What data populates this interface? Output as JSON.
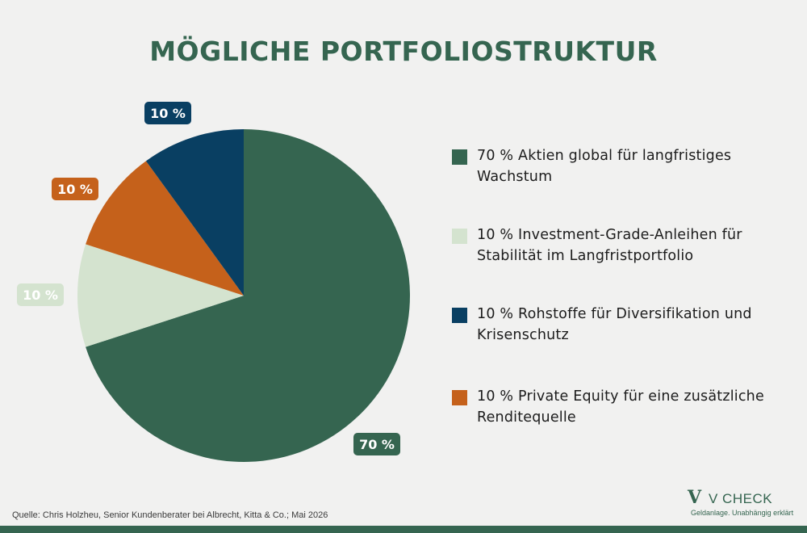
{
  "title": "MÖGLICHE PORTFOLIOSTRUKTUR",
  "chart_data": {
    "type": "pie",
    "unit": "%",
    "slices": [
      {
        "label": "70 % Aktien global für langfristiges Wachstum",
        "value": 70,
        "display": "70 %",
        "color": "#356550",
        "label_text_color": "#ffffff"
      },
      {
        "label": "10 % Investment-Grade-Anleihen für Stabilität im Langfristportfolio",
        "value": 10,
        "display": "10 %",
        "color": "#d4e3cf",
        "label_text_color": "#ffffff"
      },
      {
        "label": "10 % Private Equity für eine zusätzliche Renditequelle",
        "value": 10,
        "display": "10 %",
        "color": "#c5611b",
        "label_text_color": "#ffffff"
      },
      {
        "label": "10 % Rohstoffe für Diversifikation und Krisenschutz",
        "value": 10,
        "display": "10 %",
        "color": "#093f62",
        "label_text_color": "#ffffff"
      }
    ]
  },
  "legend": {
    "items": [
      {
        "line1": "70 % Aktien global für langfristiges",
        "line2": "Wachstum",
        "color": "#356550"
      },
      {
        "line1": "10 % Investment-Grade-Anleihen für",
        "line2": "Stabilität im Langfristportfolio",
        "color": "#d4e3cf"
      },
      {
        "line1": "10 % Rohstoffe für Diversifikation und",
        "line2": "Krisenschutz",
        "color": "#093f62"
      },
      {
        "line1": "10 % Private Equity für eine zusätzliche",
        "line2": "Renditequelle",
        "color": "#c5611b"
      }
    ]
  },
  "source": "Quelle: Chris Holzheu, Senior Kundenberater bei Albrecht, Kitta & Co.; Mai 2026",
  "logo": {
    "mark": "V",
    "word": "V CHECK",
    "tagline": "Geldanlage. Unabhängig erklärt"
  },
  "colors": {
    "accent": "#356550",
    "background": "#f1f1f0"
  }
}
